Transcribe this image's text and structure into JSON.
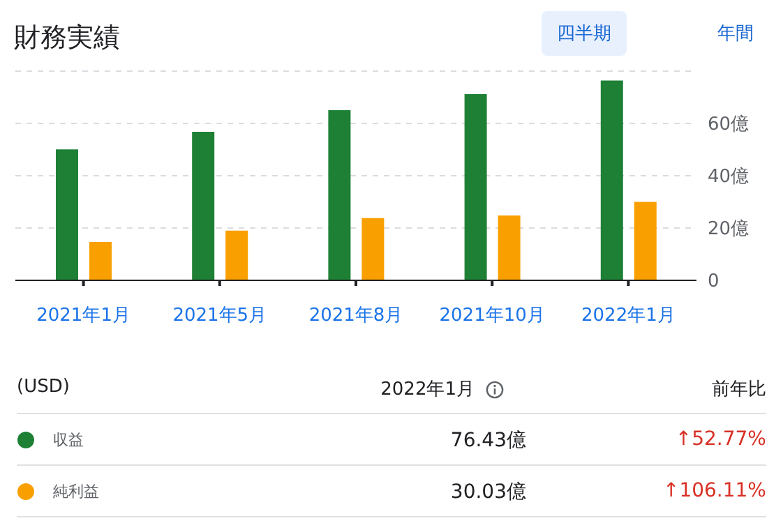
{
  "chart_data": {
    "type": "bar",
    "title": "財務実績",
    "categories": [
      "2021年1月",
      "2021年5月",
      "2021年8月",
      "2021年10月",
      "2022年1月"
    ],
    "series": [
      {
        "name": "収益",
        "color": "#1e8035",
        "values": [
          50.1,
          56.8,
          65.1,
          71.2,
          76.4
        ]
      },
      {
        "name": "純利益",
        "color": "#f9a000",
        "values": [
          14.7,
          19.0,
          23.8,
          24.8,
          30.0
        ]
      }
    ],
    "ylim": [
      0,
      80
    ],
    "yticks": [
      {
        "value": 0,
        "label": "0"
      },
      {
        "value": 20,
        "label": "20億"
      },
      {
        "value": 40,
        "label": "40億"
      },
      {
        "value": 60,
        "label": "60億"
      }
    ],
    "grid": "y",
    "legend": "bottom",
    "annotations": [
      "四半期",
      "年間",
      "(USD)",
      "2022年1月",
      "前年比",
      "↑52.77%",
      "↑106.11%",
      "76.43億",
      "30.03億"
    ]
  }
}
